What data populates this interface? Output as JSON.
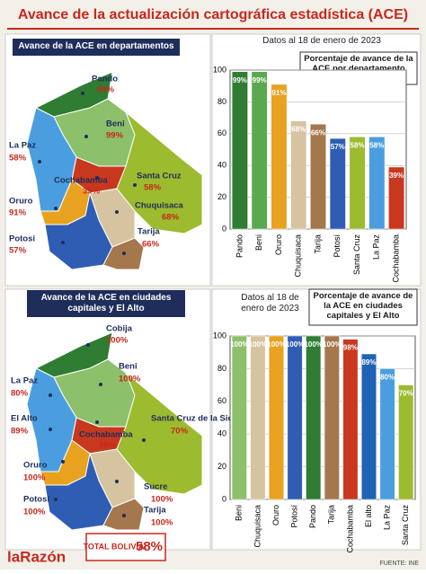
{
  "title": "Avance de la actualización cartográfica estadística (ACE)",
  "maps": [
    {
      "heading": "Avance de la ACE en departamentos",
      "labels": [
        {
          "name": "Pando",
          "value": "99%"
        },
        {
          "name": "Beni",
          "value": "99%"
        },
        {
          "name": "La Paz",
          "value": "58%"
        },
        {
          "name": "Cochabamba",
          "value": "39%"
        },
        {
          "name": "Santa Cruz",
          "value": "58%"
        },
        {
          "name": "Oruro",
          "value": "91%"
        },
        {
          "name": "Chuquisaca",
          "value": "68%"
        },
        {
          "name": "Potosí",
          "value": "57%"
        },
        {
          "name": "Tarija",
          "value": "66%"
        }
      ]
    },
    {
      "heading": "Avance de la ACE en ciudades capitales y El Alto",
      "labels": [
        {
          "name": "Cobija",
          "value": "100%"
        },
        {
          "name": "Beni",
          "value": "100%"
        },
        {
          "name": "La Paz",
          "value": "80%"
        },
        {
          "name": "El Alto",
          "value": "89%"
        },
        {
          "name": "Cochabamba",
          "value": "98%"
        },
        {
          "name": "Santa Cruz de la Sierra",
          "value": "70%"
        },
        {
          "name": "Oruro",
          "value": "100%"
        },
        {
          "name": "Potosí",
          "value": "100%"
        },
        {
          "name": "Sucre",
          "value": "100%"
        },
        {
          "name": "Tarija",
          "value": "100%"
        }
      ]
    }
  ],
  "chart_data": [
    {
      "type": "bar",
      "note": "Datos al 18 de enero de 2023",
      "title": "Porcentaje de avance de la ACE por departamento",
      "categories": [
        "Pando",
        "Beni",
        "Oruro",
        "Chuquisaca",
        "Tarija",
        "Potosí",
        "Santa Cruz",
        "La Paz",
        "Cochabamba"
      ],
      "values": [
        99,
        99,
        91,
        68,
        66,
        57,
        58,
        58,
        39
      ],
      "value_labels": [
        "99%",
        "99%",
        "91%",
        "68%",
        "66%",
        "57%",
        "58%",
        "58%",
        "39%"
      ],
      "colors": [
        "#2e7d32",
        "#5aa84f",
        "#e8a21f",
        "#d6c3a0",
        "#a5774d",
        "#2f5db3",
        "#9cbb2f",
        "#4a9ee0",
        "#c8381f"
      ],
      "ylim": [
        0,
        100
      ],
      "yticks": [
        0,
        20,
        40,
        60,
        80,
        100
      ],
      "grid": true
    },
    {
      "type": "bar",
      "note": "Datos al 18 de enero de 2023",
      "title": "Porcentaje de avance de la ACE en ciudades capitales y El Alto",
      "categories": [
        "Beni",
        "Chuquisaca",
        "Oruro",
        "Potosí",
        "Pando",
        "Tarija",
        "Cochabamba",
        "El alto",
        "La Paz",
        "Santa Cruz"
      ],
      "values": [
        100,
        100,
        100,
        100,
        100,
        100,
        98,
        89,
        80,
        70
      ],
      "value_labels": [
        "100%",
        "100%",
        "100%",
        "100%",
        "100%",
        "100%",
        "98%",
        "89%",
        "80%",
        "70%"
      ],
      "colors": [
        "#8dc06a",
        "#d6c3a0",
        "#e8a21f",
        "#2f5db3",
        "#2e7d32",
        "#a5774d",
        "#c8381f",
        "#1e63b6",
        "#4a9ee0",
        "#9cbb2f"
      ],
      "ylim": [
        0,
        100
      ],
      "yticks": [
        0,
        20,
        40,
        60,
        80,
        100
      ],
      "grid": true
    }
  ],
  "total": {
    "label": "TOTAL BOLIVIA:",
    "value": "58%"
  },
  "source": "FUENTE: INE",
  "logo": "laRazón"
}
